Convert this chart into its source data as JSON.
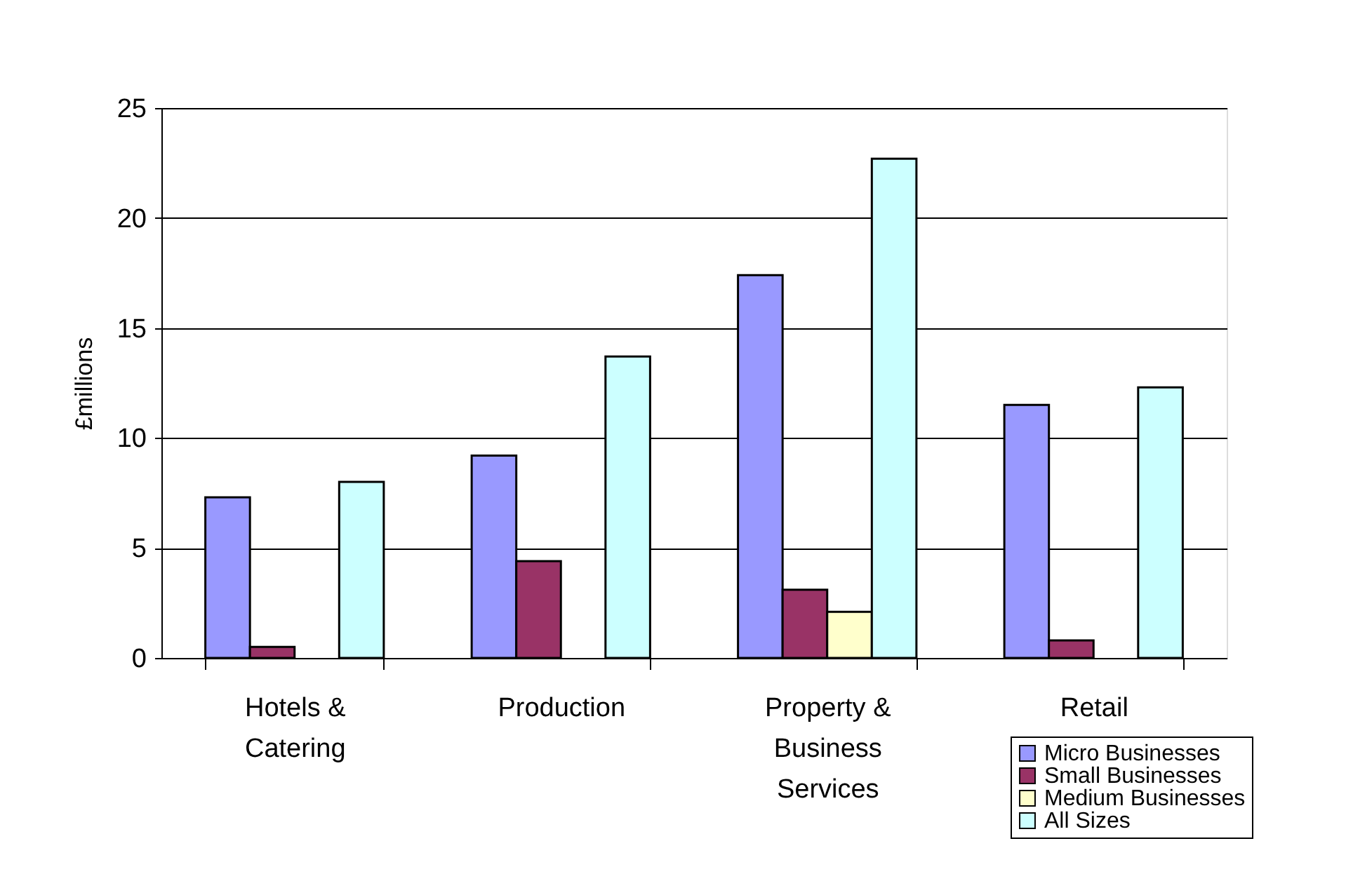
{
  "chart_data": {
    "type": "bar",
    "ylabel": "£millions",
    "categories": [
      "Hotels & Catering",
      "Production",
      "Property & Business Services",
      "Retail"
    ],
    "series": [
      {
        "name": "Micro Businesses",
        "color": "#9999ff",
        "values": [
          7.3,
          9.2,
          17.4,
          11.5
        ]
      },
      {
        "name": "Small Businesses",
        "color": "#993366",
        "values": [
          0.5,
          4.4,
          3.1,
          0.8
        ]
      },
      {
        "name": "Medium Businesses",
        "color": "#ffffcc",
        "values": [
          null,
          null,
          2.1,
          null
        ]
      },
      {
        "name": "All Sizes",
        "color": "#ccffff",
        "values": [
          8.0,
          13.7,
          22.7,
          12.3
        ]
      }
    ],
    "ylim": [
      0,
      25
    ],
    "yticks": [
      0,
      5,
      10,
      15,
      20,
      25
    ],
    "grid": "y",
    "legend": "bottom right"
  }
}
